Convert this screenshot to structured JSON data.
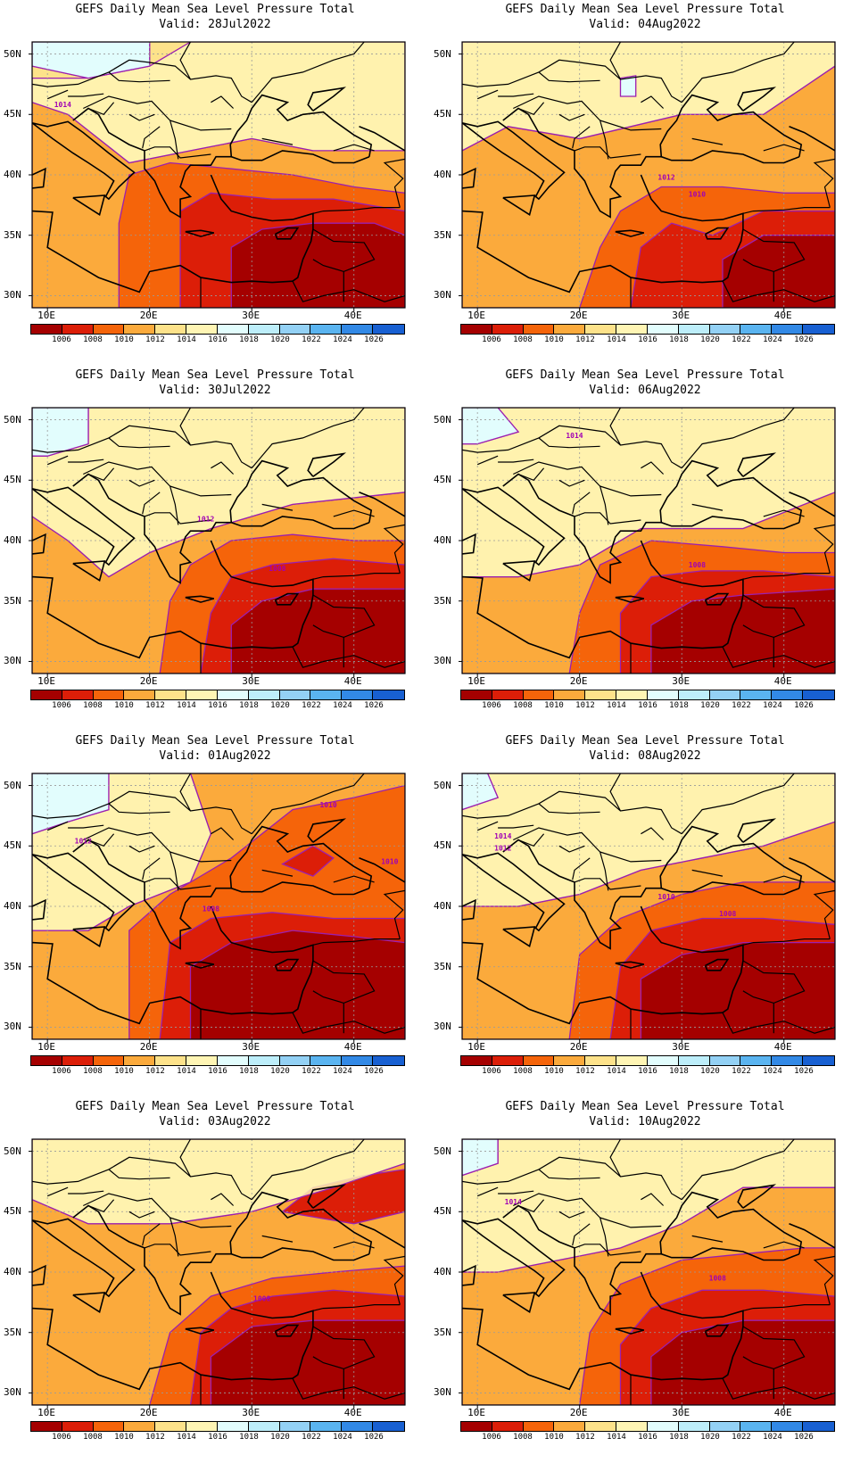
{
  "map": {
    "title_line1": "GEFS Daily Mean Sea Level Pressure Total",
    "lat_ticks": [
      "30N",
      "35N",
      "40N",
      "45N",
      "50N"
    ],
    "lon_ticks": [
      "10E",
      "20E",
      "30E",
      "40E"
    ],
    "colorbar": {
      "labels": [
        "1006",
        "1008",
        "1010",
        "1012",
        "1014",
        "1016",
        "1018",
        "1020",
        "1022",
        "1024",
        "1026"
      ],
      "colors": [
        "#a50000",
        "#dc1e08",
        "#f5640a",
        "#fbaa3c",
        "#fde28a",
        "#fff5b4",
        "#e2fdfd",
        "#bdeefa",
        "#93d1f5",
        "#5ab4f0",
        "#3289e6",
        "#1860d2"
      ]
    },
    "panels": [
      {
        "valid": "Valid: 28Jul2022",
        "contour_labels": [
          "1014"
        ]
      },
      {
        "valid": "Valid: 04Aug2022",
        "contour_labels": [
          "1012",
          "1010"
        ]
      },
      {
        "valid": "Valid: 30Jul2022",
        "contour_labels": [
          "1012",
          "1008"
        ]
      },
      {
        "valid": "Valid: 06Aug2022",
        "contour_labels": [
          "1014",
          "1008"
        ]
      },
      {
        "valid": "Valid: 01Aug2022",
        "contour_labels": [
          "1010",
          "1012",
          "1008",
          "1010"
        ]
      },
      {
        "valid": "Valid: 08Aug2022",
        "contour_labels": [
          "1014",
          "1012",
          "1010",
          "1008"
        ]
      },
      {
        "valid": "Valid: 03Aug2022",
        "contour_labels": [
          "1008"
        ]
      },
      {
        "valid": "Valid: 10Aug2022",
        "contour_labels": [
          "1014",
          "1008"
        ]
      }
    ]
  }
}
